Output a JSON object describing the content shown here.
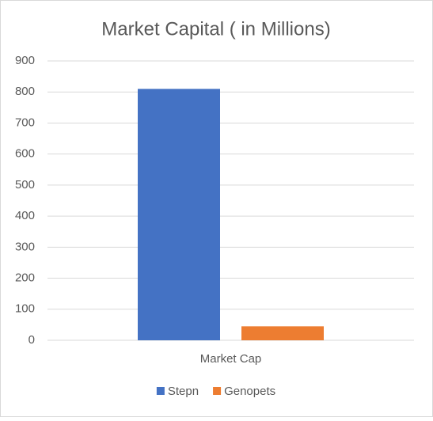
{
  "chart_data": {
    "type": "bar",
    "title": "Market Capital ( in Millions)",
    "categories": [
      "Market Cap"
    ],
    "series": [
      {
        "name": "Stepn",
        "color": "#4472c4",
        "values": [
          810
        ]
      },
      {
        "name": "Genopets",
        "color": "#ed7d31",
        "values": [
          45
        ]
      }
    ],
    "ylim": [
      0,
      900
    ],
    "yticks": [
      0,
      100,
      200,
      300,
      400,
      500,
      600,
      700,
      800,
      900
    ],
    "grid": true,
    "legend": "bottom"
  }
}
